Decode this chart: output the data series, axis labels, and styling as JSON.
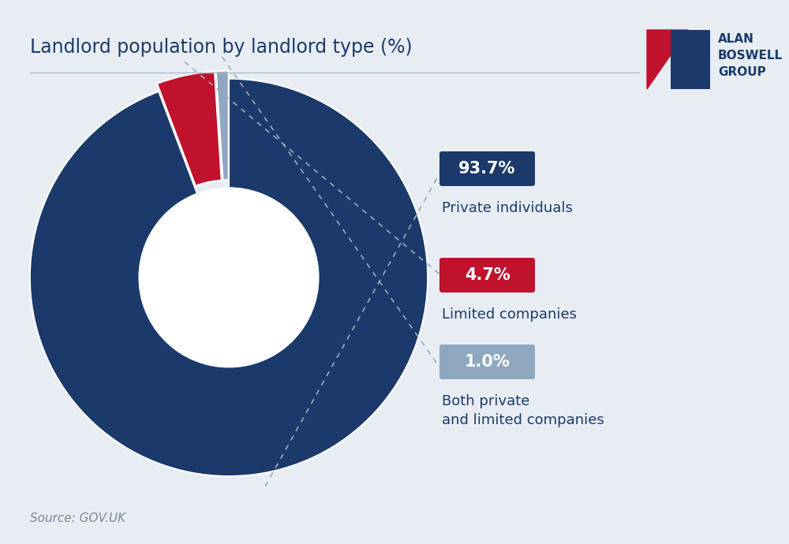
{
  "title": "Landlord population by landlord type (%)",
  "background_color": "#e8edf3",
  "slices": [
    93.7,
    4.7,
    1.0
  ],
  "labels": [
    "Private individuals",
    "Limited companies",
    "Both private\nand limited companies"
  ],
  "percentages": [
    "93.7%",
    "4.7%",
    "1.0%"
  ],
  "colors": [
    "#1b3a6b",
    "#c0122c",
    "#8fa8bf"
  ],
  "label_bg_colors": [
    "#1b3a6b",
    "#c0122c",
    "#8fa8bf"
  ],
  "source": "Source: GOV.UK",
  "title_color": "#1b3a6b",
  "label_color": "#1b3a6b",
  "pct_text_color": "#ffffff"
}
